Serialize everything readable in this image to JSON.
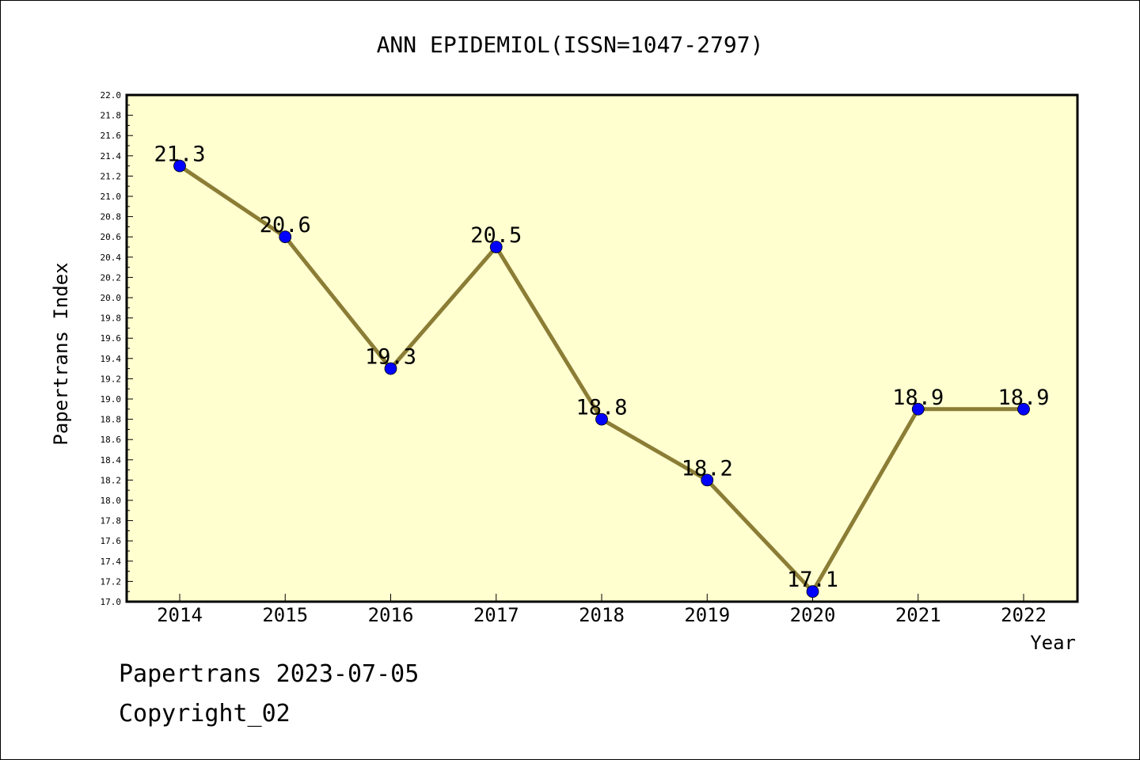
{
  "chart_data": {
    "type": "line",
    "title": "ANN EPIDEMIOL(ISSN=1047-2797)",
    "xlabel": "Year",
    "ylabel": "Papertrans Index",
    "categories": [
      "2014",
      "2015",
      "2016",
      "2017",
      "2018",
      "2019",
      "2020",
      "2021",
      "2022"
    ],
    "series": [
      {
        "values": [
          21.3,
          20.6,
          19.3,
          20.5,
          18.8,
          18.2,
          17.1,
          18.9,
          18.9
        ],
        "data_labels": [
          "21.3",
          "20.6",
          "19.3",
          "20.5",
          "18.8",
          "18.2",
          "17.1",
          "18.9",
          "18.9"
        ]
      }
    ],
    "ylim": [
      17.0,
      22.0
    ],
    "yticks": [
      "17.0",
      "17.2",
      "17.4",
      "17.6",
      "17.8",
      "18.0",
      "18.2",
      "18.4",
      "18.6",
      "18.8",
      "19.0",
      "19.2",
      "19.4",
      "19.6",
      "19.8",
      "20.0",
      "20.2",
      "20.4",
      "20.6",
      "20.8",
      "21.0",
      "21.2",
      "21.4",
      "21.6",
      "21.8",
      "22.0"
    ],
    "grid": false,
    "legend": "none",
    "colors": {
      "plot_background": "#ffffd0",
      "line": "#8b7d35",
      "marker": "#0000ff"
    }
  },
  "footer": {
    "date_line": "Papertrans 2023-07-05",
    "copyright": "Copyright_02"
  }
}
